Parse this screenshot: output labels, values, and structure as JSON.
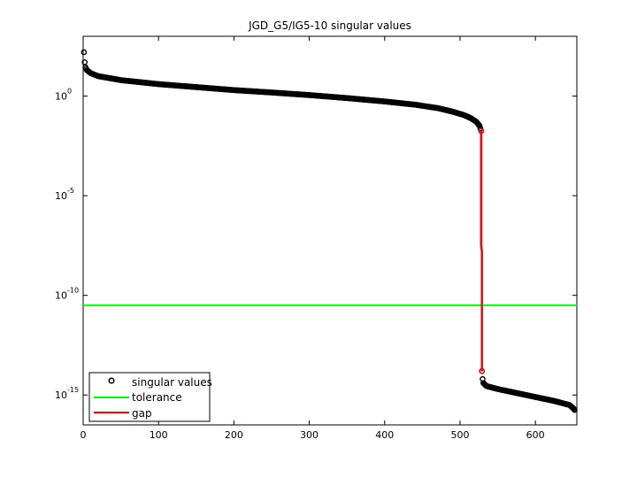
{
  "chart_data": {
    "type": "scatter",
    "title": "JGD_G5/IG5-10 singular values",
    "xlabel": "",
    "ylabel": "",
    "xlim": [
      0,
      655
    ],
    "ylim_log10": [
      -16.5,
      3
    ],
    "y_scale": "log",
    "x_ticks": [
      0,
      100,
      200,
      300,
      400,
      500,
      600
    ],
    "x_tick_labels": [
      "0",
      "100",
      "200",
      "300",
      "400",
      "500",
      "600"
    ],
    "y_ticks_log10": [
      0,
      -5,
      -10,
      -15
    ],
    "y_tick_bases": [
      "10",
      "10",
      "10",
      "10"
    ],
    "y_tick_exponents": [
      "0",
      "-5",
      "-10",
      "-15"
    ],
    "grid": false,
    "legend_position": "bottom-left",
    "series": [
      {
        "name": "singular values",
        "style": "markers",
        "color": "#000000",
        "marker": "circle",
        "points_log10": [
          [
            1,
            2.2
          ],
          [
            2,
            1.7
          ],
          [
            3,
            1.45
          ],
          [
            5,
            1.3
          ],
          [
            10,
            1.15
          ],
          [
            20,
            1.0
          ],
          [
            50,
            0.8
          ],
          [
            100,
            0.6
          ],
          [
            150,
            0.45
          ],
          [
            200,
            0.3
          ],
          [
            250,
            0.18
          ],
          [
            300,
            0.05
          ],
          [
            350,
            -0.1
          ],
          [
            400,
            -0.27
          ],
          [
            440,
            -0.43
          ],
          [
            470,
            -0.6
          ],
          [
            490,
            -0.78
          ],
          [
            505,
            -0.95
          ],
          [
            515,
            -1.12
          ],
          [
            522,
            -1.3
          ],
          [
            526,
            -1.5
          ],
          [
            528,
            -1.75
          ],
          [
            529,
            -13.8
          ],
          [
            530,
            -14.2
          ],
          [
            531,
            -14.4
          ],
          [
            535,
            -14.55
          ],
          [
            550,
            -14.7
          ],
          [
            575,
            -14.9
          ],
          [
            600,
            -15.1
          ],
          [
            625,
            -15.3
          ],
          [
            645,
            -15.5
          ],
          [
            650,
            -15.65
          ],
          [
            652,
            -15.75
          ]
        ]
      },
      {
        "name": "tolerance",
        "style": "line",
        "color": "#00ff00",
        "y_log10": -10.5
      },
      {
        "name": "gap",
        "style": "line",
        "color": "#ff0000",
        "points_log10": [
          [
            528,
            -1.75
          ],
          [
            528,
            -7.5
          ],
          [
            529,
            -7.8
          ],
          [
            529,
            -13.8
          ]
        ]
      }
    ]
  }
}
